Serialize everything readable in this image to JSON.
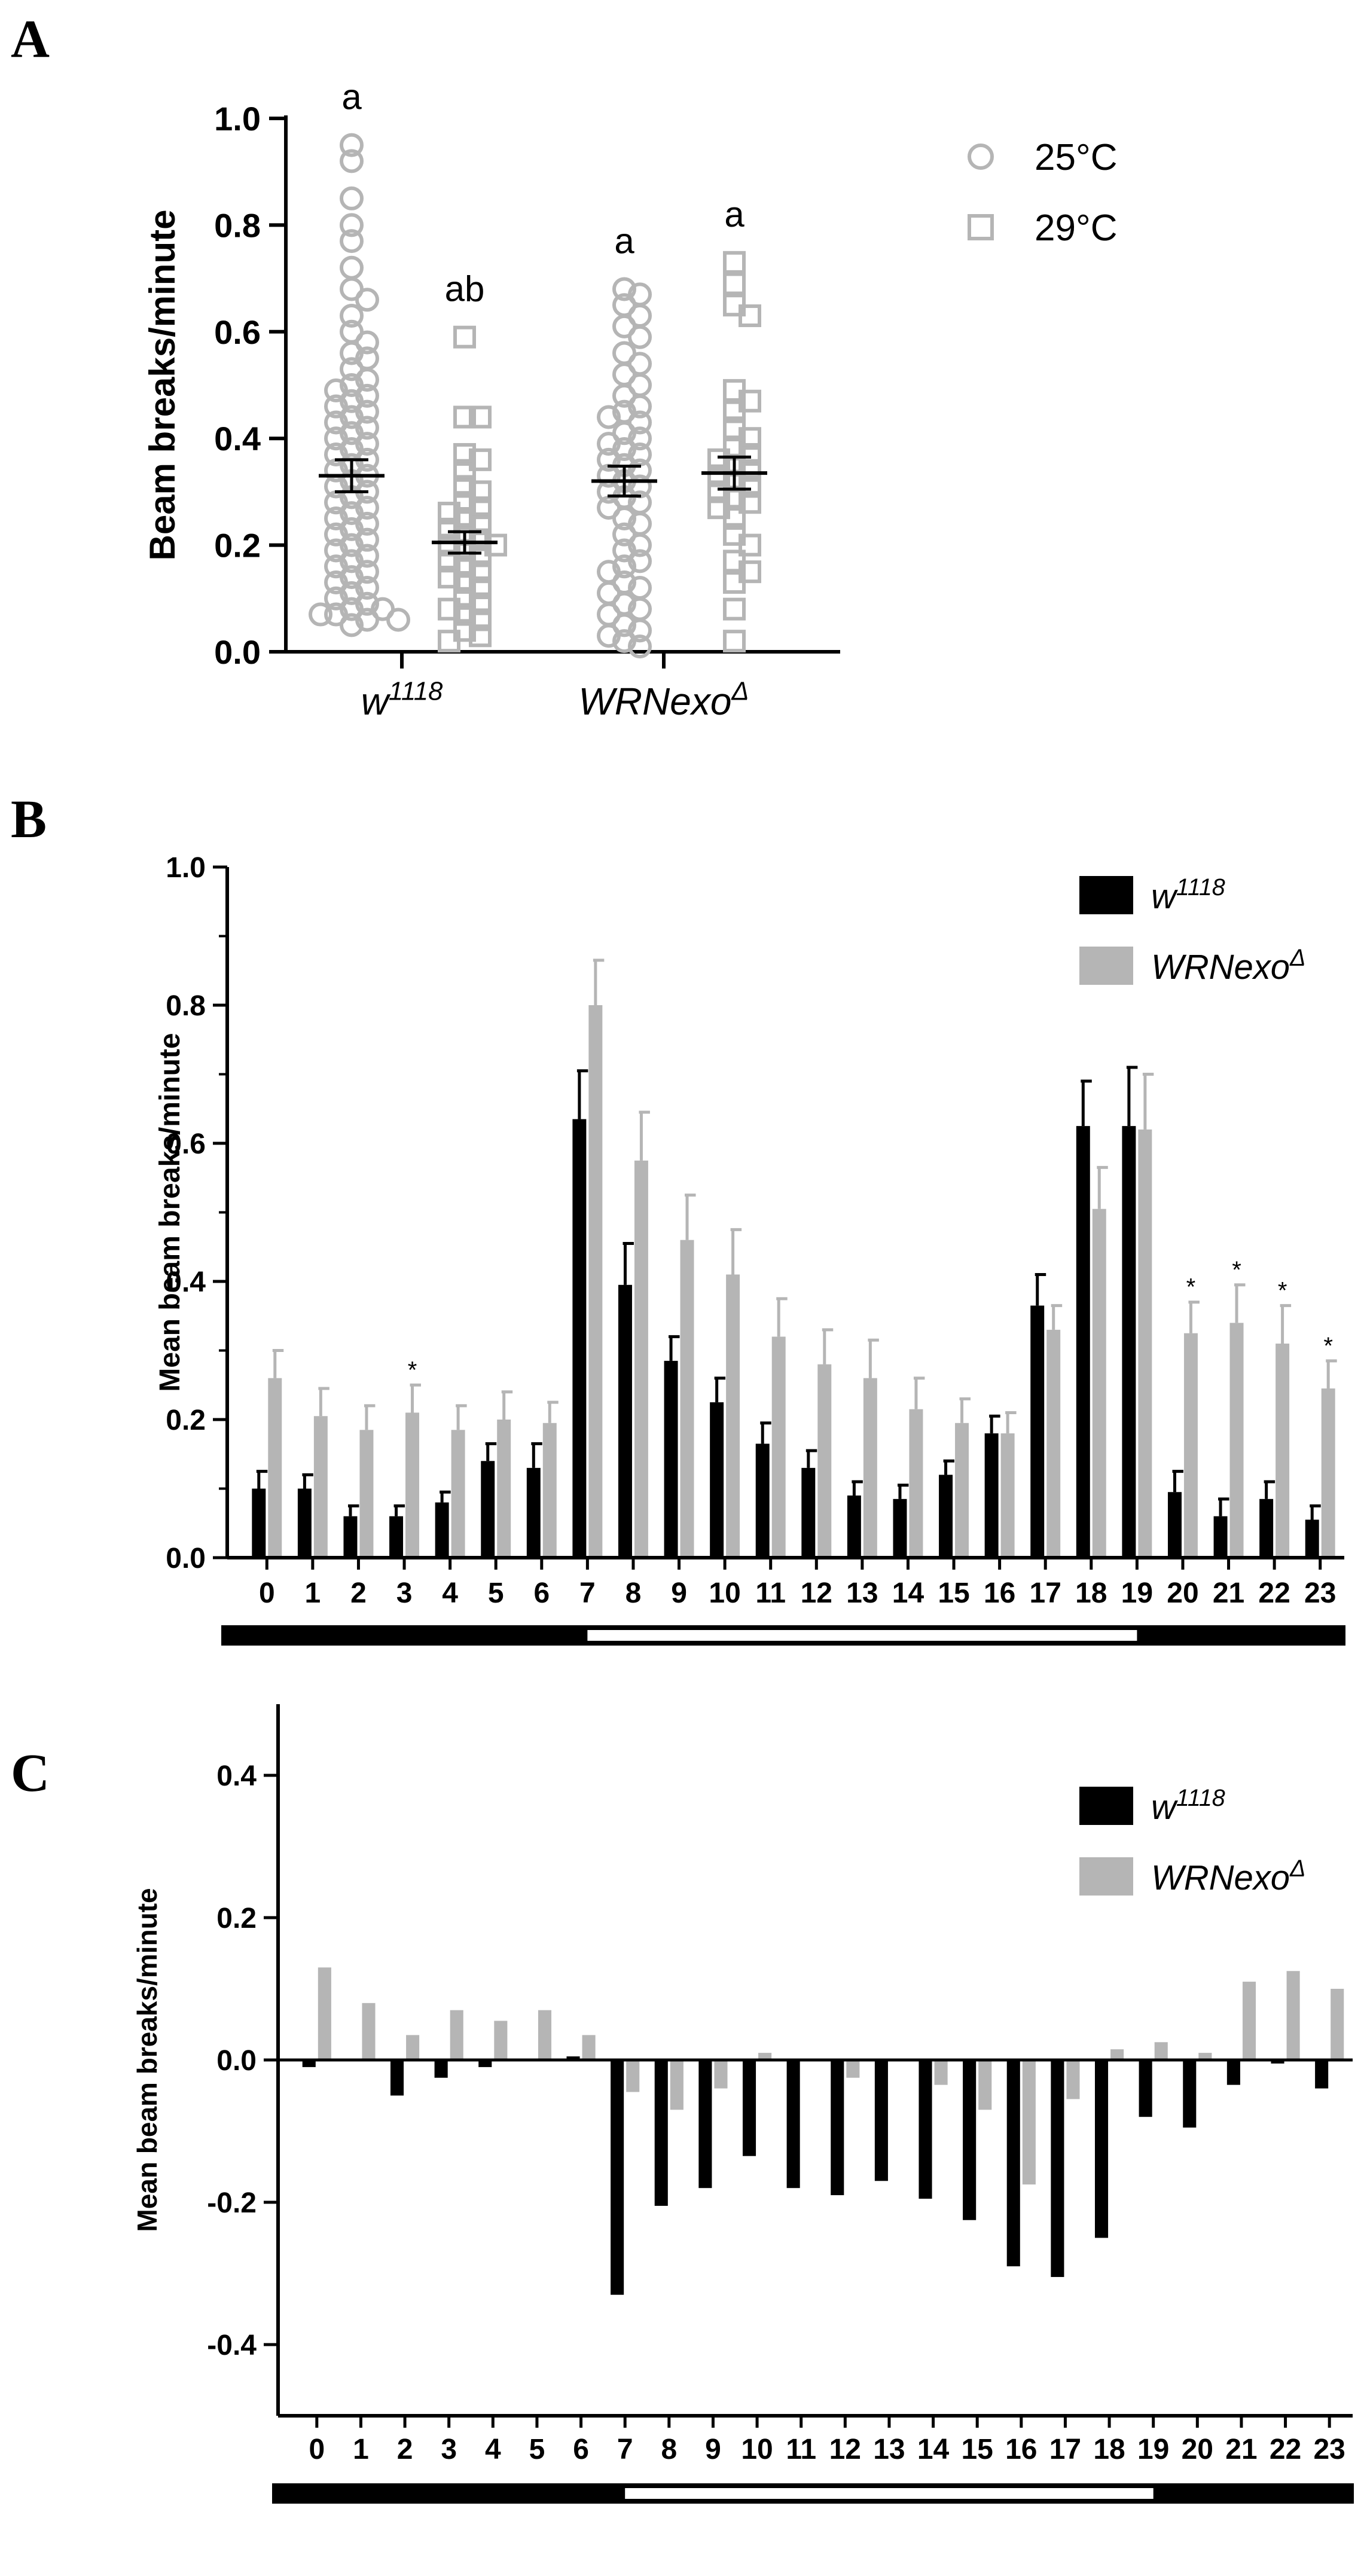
{
  "chart_data": [
    {
      "panel": "A",
      "type": "scatter",
      "ylabel": "Beam breaks/minute",
      "ylim": [
        0,
        1.0
      ],
      "yticks": [
        "0.0",
        "0.2",
        "0.4",
        "0.6",
        "0.8",
        "1.0"
      ],
      "groups": [
        "w1118",
        "WRNexoΔ"
      ],
      "group_labels": [
        {
          "base": "w",
          "sup": "1118"
        },
        {
          "base": "WRNexo",
          "sup": "Δ"
        }
      ],
      "legend": [
        {
          "name": "25°C",
          "marker": "circle",
          "color": "#b5b5b5"
        },
        {
          "name": "29°C",
          "marker": "square",
          "color": "#b5b5b5"
        }
      ],
      "series": [
        {
          "group": "w1118",
          "temp": "25°C",
          "mean": 0.33,
          "sem": 0.03,
          "letter": "a",
          "points": [
            0.95,
            0.92,
            0.85,
            0.8,
            0.77,
            0.72,
            0.68,
            0.66,
            0.63,
            0.6,
            0.58,
            0.56,
            0.55,
            0.53,
            0.51,
            0.5,
            0.49,
            0.48,
            0.47,
            0.46,
            0.45,
            0.44,
            0.43,
            0.42,
            0.41,
            0.4,
            0.39,
            0.38,
            0.37,
            0.36,
            0.35,
            0.34,
            0.33,
            0.32,
            0.31,
            0.3,
            0.29,
            0.28,
            0.27,
            0.26,
            0.25,
            0.24,
            0.23,
            0.22,
            0.21,
            0.2,
            0.19,
            0.18,
            0.17,
            0.16,
            0.15,
            0.14,
            0.13,
            0.12,
            0.11,
            0.1,
            0.09,
            0.08,
            0.08,
            0.07,
            0.07,
            0.06,
            0.06,
            0.05
          ]
        },
        {
          "group": "w1118",
          "temp": "29°C",
          "mean": 0.205,
          "sem": 0.02,
          "letter": "ab",
          "points": [
            0.59,
            0.44,
            0.44,
            0.37,
            0.36,
            0.34,
            0.31,
            0.3,
            0.28,
            0.27,
            0.26,
            0.25,
            0.24,
            0.23,
            0.22,
            0.21,
            0.2,
            0.2,
            0.19,
            0.18,
            0.17,
            0.16,
            0.15,
            0.14,
            0.13,
            0.12,
            0.1,
            0.09,
            0.08,
            0.07,
            0.06,
            0.04,
            0.03,
            0.02
          ]
        },
        {
          "group": "WRNexoΔ",
          "temp": "25°C",
          "mean": 0.32,
          "sem": 0.028,
          "letter": "a",
          "points": [
            0.68,
            0.67,
            0.65,
            0.63,
            0.61,
            0.59,
            0.56,
            0.54,
            0.52,
            0.5,
            0.48,
            0.46,
            0.45,
            0.44,
            0.43,
            0.41,
            0.4,
            0.39,
            0.38,
            0.37,
            0.36,
            0.35,
            0.34,
            0.33,
            0.32,
            0.31,
            0.3,
            0.29,
            0.28,
            0.27,
            0.25,
            0.24,
            0.22,
            0.2,
            0.19,
            0.17,
            0.16,
            0.15,
            0.13,
            0.12,
            0.11,
            0.09,
            0.08,
            0.07,
            0.05,
            0.04,
            0.03,
            0.02,
            0.01
          ]
        },
        {
          "group": "WRNexoΔ",
          "temp": "29°C",
          "mean": 0.335,
          "sem": 0.03,
          "letter": "a",
          "points": [
            0.73,
            0.69,
            0.65,
            0.63,
            0.49,
            0.47,
            0.45,
            0.42,
            0.4,
            0.38,
            0.37,
            0.36,
            0.35,
            0.34,
            0.33,
            0.32,
            0.31,
            0.3,
            0.29,
            0.28,
            0.27,
            0.25,
            0.22,
            0.2,
            0.17,
            0.15,
            0.13,
            0.08,
            0.02
          ]
        }
      ]
    },
    {
      "panel": "B",
      "type": "bar",
      "ylabel": "Mean beam breaks/minute",
      "ylim": [
        0,
        1.0
      ],
      "yticks": [
        "0.0",
        "0.2",
        "0.4",
        "0.6",
        "0.8",
        "1.0"
      ],
      "categories": [
        "0",
        "1",
        "2",
        "3",
        "4",
        "5",
        "6",
        "7",
        "8",
        "9",
        "10",
        "11",
        "12",
        "13",
        "14",
        "15",
        "16",
        "17",
        "18",
        "19",
        "20",
        "21",
        "22",
        "23"
      ],
      "light_bar": {
        "light_start": 7,
        "light_end": 19
      },
      "legend": [
        {
          "base": "w",
          "sup": "1118",
          "color": "#000000"
        },
        {
          "base": "WRNexo",
          "sup": "Δ",
          "color": "#b5b5b5"
        }
      ],
      "series": [
        {
          "name": "w1118",
          "color": "#000000",
          "values": [
            0.1,
            0.1,
            0.06,
            0.06,
            0.08,
            0.14,
            0.13,
            0.635,
            0.395,
            0.285,
            0.225,
            0.165,
            0.13,
            0.09,
            0.085,
            0.12,
            0.18,
            0.365,
            0.625,
            0.625,
            0.095,
            0.06,
            0.085,
            0.055
          ],
          "errors": [
            0.025,
            0.02,
            0.015,
            0.015,
            0.015,
            0.025,
            0.035,
            0.07,
            0.06,
            0.035,
            0.035,
            0.03,
            0.025,
            0.02,
            0.02,
            0.02,
            0.025,
            0.045,
            0.065,
            0.085,
            0.03,
            0.025,
            0.025,
            0.02
          ]
        },
        {
          "name": "WRNexoΔ",
          "color": "#b5b5b5",
          "values": [
            0.26,
            0.205,
            0.185,
            0.21,
            0.185,
            0.2,
            0.195,
            0.8,
            0.575,
            0.46,
            0.41,
            0.32,
            0.28,
            0.26,
            0.215,
            0.195,
            0.18,
            0.33,
            0.505,
            0.62,
            0.325,
            0.34,
            0.31,
            0.245
          ],
          "errors": [
            0.04,
            0.04,
            0.035,
            0.04,
            0.035,
            0.04,
            0.03,
            0.065,
            0.07,
            0.065,
            0.065,
            0.055,
            0.05,
            0.055,
            0.045,
            0.035,
            0.03,
            0.035,
            0.06,
            0.08,
            0.045,
            0.055,
            0.055,
            0.04
          ],
          "significance": [
            "",
            "",
            "",
            "*",
            "",
            "",
            "",
            "",
            "",
            "",
            "",
            "",
            "",
            "",
            "",
            "",
            "",
            "",
            "",
            "",
            "*",
            "*",
            "*",
            "*"
          ]
        }
      ]
    },
    {
      "panel": "C",
      "type": "bar",
      "ylabel": "Mean beam breaks/minute",
      "ylim": [
        -0.5,
        0.5
      ],
      "yticks": [
        "-0.4",
        "-0.2",
        "0.0",
        "0.2",
        "0.4"
      ],
      "categories": [
        "0",
        "1",
        "2",
        "3",
        "4",
        "5",
        "6",
        "7",
        "8",
        "9",
        "10",
        "11",
        "12",
        "13",
        "14",
        "15",
        "16",
        "17",
        "18",
        "19",
        "20",
        "21",
        "22",
        "23"
      ],
      "light_bar": {
        "light_start": 7,
        "light_end": 19
      },
      "legend": [
        {
          "base": "w",
          "sup": "1118",
          "color": "#000000"
        },
        {
          "base": "WRNexo",
          "sup": "Δ",
          "color": "#b5b5b5"
        }
      ],
      "series": [
        {
          "name": "w1118",
          "color": "#000000",
          "values": [
            -0.01,
            0.0,
            -0.05,
            -0.025,
            -0.01,
            0.0,
            0.005,
            -0.33,
            -0.205,
            -0.18,
            -0.135,
            -0.18,
            -0.19,
            -0.17,
            -0.195,
            -0.225,
            -0.29,
            -0.305,
            -0.25,
            -0.08,
            -0.095,
            -0.035,
            -0.005,
            -0.04
          ]
        },
        {
          "name": "WRNexoΔ",
          "color": "#b5b5b5",
          "values": [
            0.13,
            0.08,
            0.035,
            0.07,
            0.055,
            0.07,
            0.035,
            -0.045,
            -0.07,
            -0.04,
            0.01,
            0.0,
            -0.025,
            0.0,
            -0.035,
            -0.07,
            -0.175,
            -0.055,
            0.015,
            0.025,
            0.01,
            0.11,
            0.125,
            0.1
          ]
        }
      ]
    }
  ],
  "panels": {
    "A": "A",
    "B": "B",
    "C": "C"
  }
}
